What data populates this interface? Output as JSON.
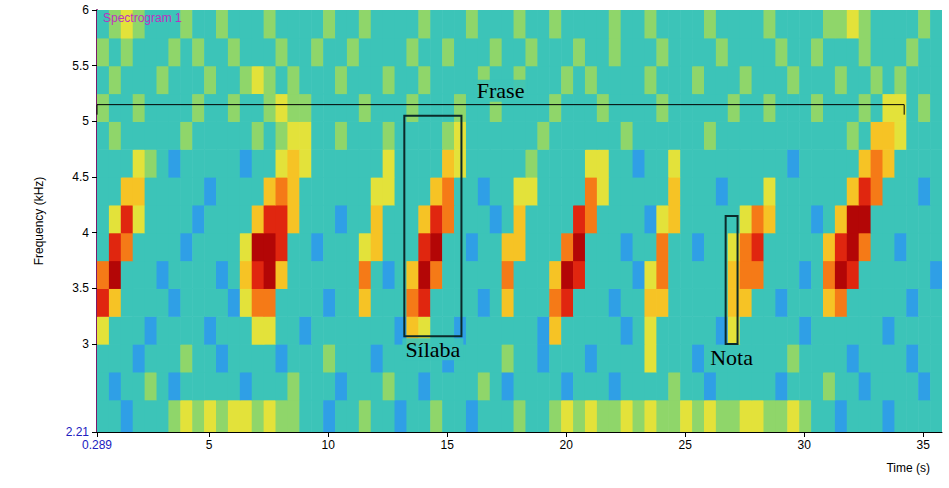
{
  "chart_data": {
    "type": "heatmap",
    "title": "Spectrogram 1",
    "x_label": "Time (s)",
    "y_label": "Frequency (kHz)",
    "xlim": [
      0.289,
      35.789
    ],
    "ylim": [
      2.21,
      6
    ],
    "xticks": [
      0.289,
      5,
      10,
      15,
      20,
      25,
      30,
      35
    ],
    "yticks": [
      2.21,
      3,
      3.5,
      4,
      4.5,
      5,
      5.5,
      6
    ],
    "grid": false,
    "zlim": [
      0,
      9
    ],
    "x_edges": [
      0.289,
      0.789,
      1.289,
      1.789,
      2.289,
      2.789,
      3.289,
      3.789,
      4.289,
      4.789,
      5.289,
      5.789,
      6.289,
      6.789,
      7.289,
      7.789,
      8.289,
      8.789,
      9.289,
      9.789,
      10.289,
      10.789,
      11.289,
      11.789,
      12.289,
      12.789,
      13.289,
      13.789,
      14.289,
      14.789,
      15.289,
      15.789,
      16.289,
      16.789,
      17.289,
      17.789,
      18.289,
      18.789,
      19.289,
      19.789,
      20.289,
      20.789,
      21.289,
      21.789,
      22.289,
      22.789,
      23.289,
      23.789,
      24.289,
      24.789,
      25.289,
      25.789,
      26.289,
      26.789,
      27.289,
      27.789,
      28.289,
      28.789,
      29.289,
      29.789,
      30.289,
      30.789,
      31.289,
      31.789,
      32.289,
      32.789,
      33.289,
      33.789,
      34.289,
      34.789,
      35.289,
      35.789
    ],
    "y_edges": [
      2.21,
      2.5,
      2.75,
      3,
      3.25,
      3.5,
      3.75,
      4,
      4.25,
      4.5,
      4.75,
      5,
      5.25,
      5.5,
      5.75,
      6
    ],
    "cells": [
      [
        3,
        3,
        2,
        3,
        3,
        3,
        4,
        5,
        4,
        5,
        4,
        5,
        5,
        4,
        5,
        4,
        4,
        3,
        3,
        2,
        3,
        3,
        4,
        3,
        3,
        2,
        3,
        3,
        4,
        3,
        3,
        2,
        3,
        3,
        3,
        4,
        3,
        3,
        4,
        5,
        4,
        5,
        4,
        4,
        5,
        4,
        5,
        4,
        4,
        5,
        4,
        5,
        4,
        4,
        5,
        5,
        4,
        4,
        5,
        4,
        3,
        3,
        2,
        3,
        3,
        3,
        2,
        3,
        3,
        3,
        3
      ],
      [
        3,
        2,
        3,
        3,
        4,
        3,
        2,
        3,
        3,
        3,
        3,
        3,
        2,
        3,
        3,
        3,
        4,
        3,
        3,
        3,
        2,
        3,
        3,
        3,
        4,
        3,
        3,
        2,
        3,
        3,
        3,
        3,
        4,
        3,
        2,
        3,
        3,
        3,
        3,
        2,
        3,
        3,
        3,
        2,
        3,
        3,
        3,
        3,
        4,
        3,
        3,
        2,
        3,
        3,
        3,
        3,
        3,
        2,
        3,
        3,
        3,
        4,
        3,
        3,
        2,
        3,
        3,
        3,
        3,
        2,
        3
      ],
      [
        3,
        3,
        3,
        2,
        3,
        3,
        3,
        4,
        3,
        3,
        2,
        3,
        3,
        3,
        3,
        2,
        3,
        3,
        3,
        4,
        3,
        3,
        3,
        2,
        3,
        3,
        3,
        3,
        3,
        2,
        3,
        3,
        3,
        3,
        4,
        3,
        3,
        2,
        3,
        3,
        3,
        2,
        3,
        3,
        3,
        3,
        5,
        3,
        3,
        3,
        2,
        3,
        3,
        3,
        3,
        3,
        3,
        3,
        4,
        3,
        3,
        3,
        3,
        2,
        3,
        3,
        3,
        3,
        2,
        3,
        3
      ],
      [
        5,
        3,
        3,
        3,
        2,
        3,
        3,
        3,
        3,
        2,
        3,
        3,
        3,
        5,
        5,
        3,
        3,
        2,
        3,
        3,
        3,
        3,
        3,
        3,
        3,
        2,
        6,
        5,
        3,
        3,
        2,
        3,
        3,
        3,
        3,
        3,
        3,
        2,
        6,
        3,
        3,
        3,
        3,
        3,
        2,
        3,
        5,
        3,
        3,
        3,
        3,
        3,
        2,
        5,
        3,
        3,
        3,
        3,
        3,
        2,
        3,
        3,
        3,
        3,
        3,
        3,
        2,
        3,
        3,
        3,
        3
      ],
      [
        8,
        6,
        3,
        3,
        3,
        3,
        2,
        3,
        3,
        3,
        3,
        2,
        5,
        7,
        7,
        3,
        3,
        3,
        3,
        2,
        3,
        3,
        6,
        3,
        3,
        3,
        7,
        8,
        3,
        3,
        3,
        3,
        2,
        3,
        6,
        3,
        3,
        3,
        7,
        8,
        3,
        3,
        3,
        2,
        3,
        3,
        6,
        6,
        3,
        3,
        3,
        3,
        3,
        6,
        6,
        3,
        3,
        2,
        3,
        3,
        3,
        6,
        7,
        3,
        3,
        3,
        3,
        3,
        2,
        3,
        3
      ],
      [
        7,
        9,
        3,
        3,
        3,
        2,
        3,
        3,
        3,
        3,
        2,
        3,
        6,
        8,
        9,
        6,
        3,
        3,
        3,
        3,
        3,
        3,
        7,
        3,
        2,
        3,
        6,
        9,
        7,
        3,
        3,
        3,
        3,
        3,
        7,
        3,
        3,
        3,
        6,
        9,
        8,
        3,
        3,
        3,
        3,
        2,
        5,
        7,
        3,
        3,
        3,
        3,
        3,
        6,
        7,
        7,
        3,
        3,
        3,
        2,
        3,
        7,
        9,
        8,
        3,
        3,
        3,
        3,
        3,
        3,
        2
      ],
      [
        3,
        8,
        7,
        3,
        3,
        3,
        3,
        2,
        3,
        3,
        3,
        3,
        5,
        9,
        9,
        8,
        3,
        3,
        2,
        3,
        3,
        3,
        5,
        6,
        3,
        3,
        3,
        8,
        9,
        3,
        3,
        2,
        3,
        3,
        6,
        6,
        3,
        3,
        3,
        7,
        9,
        3,
        3,
        3,
        2,
        3,
        3,
        7,
        3,
        3,
        2,
        3,
        3,
        5,
        7,
        8,
        3,
        3,
        3,
        3,
        3,
        6,
        8,
        9,
        7,
        3,
        3,
        2,
        3,
        3,
        3
      ],
      [
        3,
        5,
        8,
        5,
        3,
        3,
        3,
        3,
        2,
        3,
        3,
        3,
        3,
        6,
        8,
        8,
        6,
        3,
        3,
        3,
        2,
        3,
        3,
        6,
        3,
        3,
        3,
        6,
        8,
        7,
        3,
        3,
        3,
        2,
        3,
        6,
        3,
        3,
        3,
        3,
        8,
        7,
        3,
        3,
        3,
        3,
        2,
        5,
        6,
        3,
        3,
        3,
        3,
        3,
        5,
        7,
        6,
        3,
        3,
        3,
        2,
        3,
        6,
        9,
        9,
        3,
        3,
        3,
        3,
        3,
        3
      ],
      [
        3,
        3,
        6,
        6,
        3,
        3,
        3,
        3,
        3,
        2,
        3,
        3,
        3,
        3,
        6,
        7,
        6,
        3,
        3,
        3,
        3,
        3,
        3,
        5,
        5,
        3,
        3,
        3,
        6,
        7,
        3,
        3,
        2,
        3,
        3,
        5,
        5,
        3,
        3,
        3,
        3,
        7,
        5,
        3,
        3,
        3,
        3,
        3,
        6,
        3,
        3,
        3,
        2,
        3,
        3,
        3,
        5,
        3,
        3,
        3,
        3,
        3,
        3,
        6,
        8,
        7,
        3,
        3,
        3,
        2,
        3
      ],
      [
        3,
        3,
        3,
        5,
        4,
        3,
        2,
        3,
        3,
        3,
        3,
        3,
        2,
        3,
        3,
        5,
        6,
        5,
        3,
        3,
        3,
        3,
        3,
        3,
        5,
        3,
        3,
        3,
        3,
        6,
        5,
        3,
        3,
        3,
        3,
        3,
        4,
        3,
        3,
        3,
        3,
        5,
        5,
        3,
        3,
        2,
        3,
        3,
        5,
        3,
        3,
        3,
        3,
        3,
        3,
        3,
        3,
        3,
        2,
        3,
        3,
        3,
        3,
        3,
        6,
        7,
        6,
        3,
        3,
        3,
        3
      ],
      [
        3,
        4,
        3,
        3,
        3,
        3,
        3,
        4,
        3,
        3,
        3,
        3,
        3,
        4,
        3,
        4,
        5,
        5,
        3,
        3,
        4,
        3,
        3,
        3,
        4,
        3,
        3,
        3,
        3,
        4,
        5,
        3,
        3,
        3,
        3,
        3,
        3,
        4,
        3,
        3,
        3,
        3,
        3,
        3,
        4,
        3,
        3,
        3,
        3,
        3,
        3,
        4,
        3,
        3,
        3,
        3,
        3,
        3,
        3,
        3,
        3,
        3,
        3,
        4,
        3,
        6,
        6,
        5,
        3,
        3,
        3
      ],
      [
        4,
        3,
        3,
        4,
        3,
        3,
        3,
        3,
        4,
        3,
        3,
        4,
        3,
        3,
        4,
        5,
        4,
        4,
        3,
        3,
        3,
        3,
        4,
        3,
        3,
        3,
        4,
        3,
        3,
        3,
        4,
        3,
        3,
        4,
        3,
        3,
        3,
        3,
        4,
        3,
        3,
        3,
        4,
        3,
        3,
        3,
        3,
        4,
        3,
        3,
        3,
        3,
        3,
        4,
        3,
        3,
        4,
        3,
        3,
        3,
        4,
        3,
        3,
        3,
        4,
        3,
        5,
        5,
        3,
        4,
        3
      ],
      [
        3,
        4,
        3,
        3,
        3,
        4,
        3,
        3,
        3,
        4,
        3,
        3,
        4,
        5,
        4,
        3,
        4,
        3,
        3,
        3,
        4,
        3,
        3,
        3,
        4,
        3,
        3,
        4,
        3,
        3,
        3,
        3,
        4,
        3,
        3,
        4,
        3,
        3,
        3,
        4,
        3,
        4,
        3,
        3,
        3,
        3,
        4,
        3,
        3,
        3,
        4,
        3,
        3,
        3,
        4,
        3,
        3,
        3,
        4,
        3,
        3,
        3,
        4,
        3,
        3,
        4,
        3,
        4,
        3,
        3,
        3
      ],
      [
        4,
        3,
        4,
        3,
        3,
        3,
        4,
        3,
        4,
        3,
        3,
        4,
        3,
        3,
        3,
        4,
        3,
        3,
        4,
        3,
        3,
        4,
        3,
        3,
        3,
        3,
        4,
        3,
        3,
        4,
        3,
        3,
        3,
        4,
        3,
        3,
        4,
        3,
        3,
        3,
        4,
        3,
        3,
        4,
        3,
        3,
        3,
        4,
        3,
        3,
        3,
        3,
        4,
        3,
        3,
        3,
        3,
        4,
        3,
        3,
        4,
        3,
        3,
        3,
        4,
        3,
        3,
        3,
        4,
        3,
        3
      ],
      [
        3,
        4,
        5,
        4,
        3,
        3,
        3,
        4,
        3,
        3,
        4,
        3,
        3,
        3,
        4,
        3,
        3,
        3,
        3,
        4,
        3,
        3,
        4,
        3,
        3,
        3,
        3,
        4,
        3,
        3,
        3,
        4,
        3,
        3,
        3,
        4,
        3,
        3,
        4,
        3,
        3,
        3,
        3,
        4,
        3,
        3,
        4,
        3,
        3,
        3,
        3,
        4,
        3,
        3,
        3,
        3,
        4,
        3,
        3,
        3,
        3,
        4,
        4,
        5,
        4,
        3,
        3,
        3,
        3,
        4,
        3
      ]
    ],
    "annotations": [
      {
        "text": "Frase",
        "type": "bracket",
        "x": [
          0.289,
          34.2
        ],
        "y": 5.15
      },
      {
        "text": "Sílaba",
        "type": "box",
        "x": [
          13.2,
          15.6
        ],
        "y": [
          3.07,
          5.05
        ]
      },
      {
        "text": "Nota",
        "type": "box",
        "x": [
          26.7,
          27.2
        ],
        "y": [
          3.0,
          4.15
        ]
      }
    ]
  }
}
